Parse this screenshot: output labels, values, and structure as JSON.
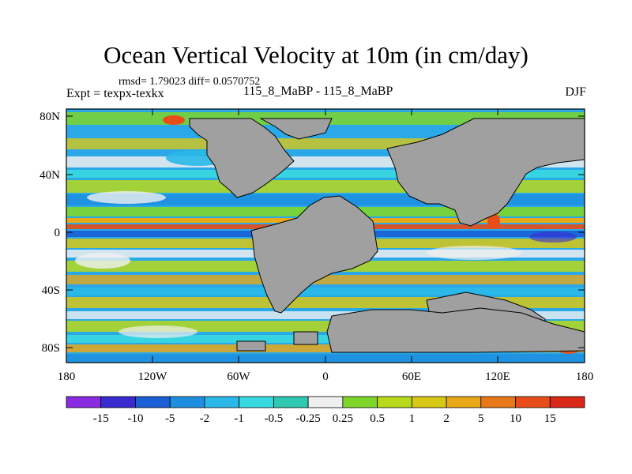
{
  "title": "Ocean Vertical Velocity at 10m (in cm/day)",
  "stats_line": "rmsd= 1.79023 diff= 0.0570752",
  "experiment": "Expt = texpx-texkx",
  "runs": "115_8_MaBP - 115_8_MaBP",
  "season": "DJF",
  "lat_ticks": [
    "80N",
    "40N",
    "0",
    "40S",
    "80S"
  ],
  "lon_ticks": [
    "180",
    "120W",
    "60W",
    "0",
    "60E",
    "120E",
    "180"
  ],
  "colorbar": {
    "labels": [
      "-15",
      "-10",
      "-5",
      "-2",
      "-1",
      "-0.5",
      "-0.25",
      "0.25",
      "0.5",
      "1",
      "2",
      "5",
      "10",
      "15"
    ],
    "colors": [
      "#8a2be2",
      "#3a2bd0",
      "#1a5fd6",
      "#1e8fe0",
      "#2ab8e8",
      "#38d8e0",
      "#30c8b0",
      "#f0f0f0",
      "#7ed62a",
      "#b8d81a",
      "#d8c816",
      "#e8a818",
      "#e87818",
      "#e84c18",
      "#d82818"
    ]
  },
  "colors": {
    "land": "#a0a0a0",
    "ocean_base": "#2aa8e8"
  }
}
